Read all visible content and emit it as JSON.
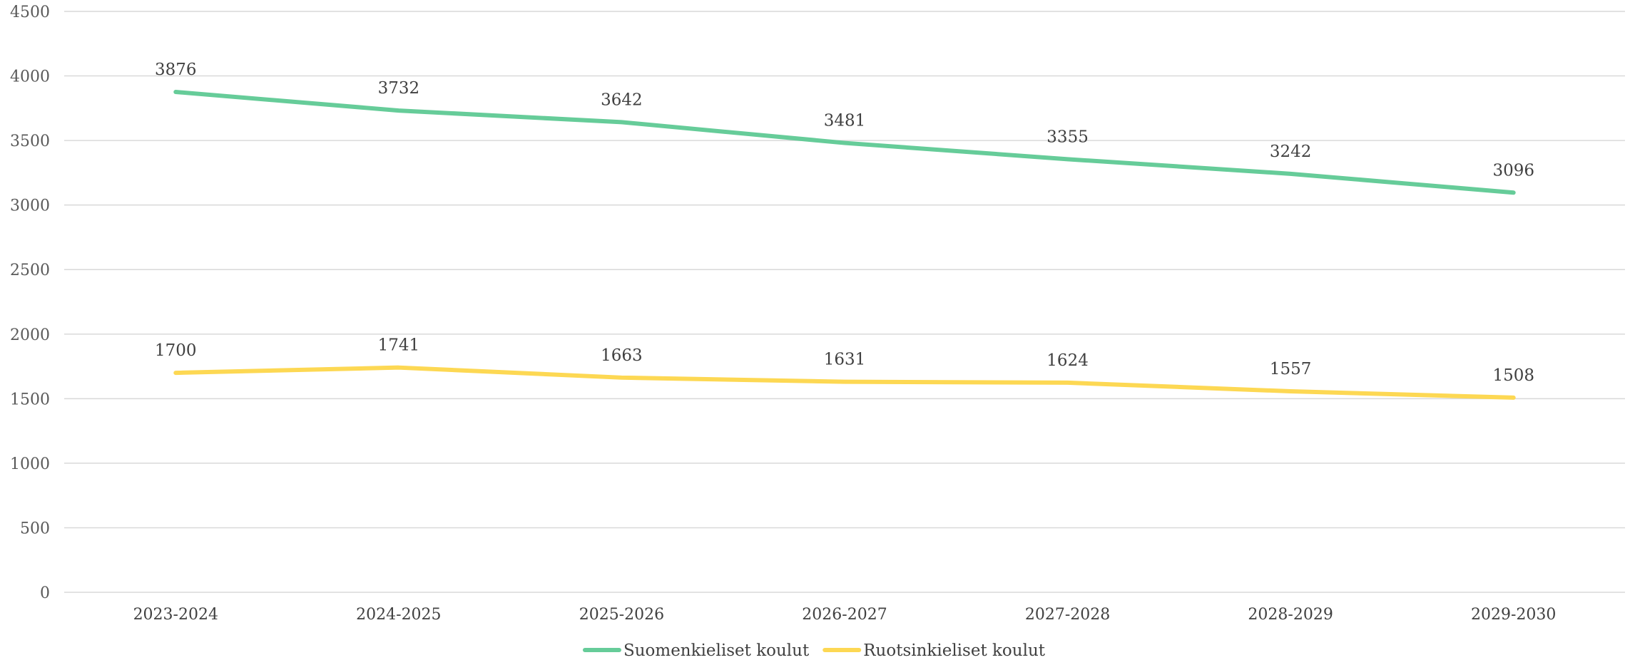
{
  "chart_data": {
    "type": "line",
    "title": "",
    "xlabel": "",
    "ylabel": "",
    "ylim": [
      0,
      4500
    ],
    "yticks": [
      0,
      500,
      1000,
      1500,
      2000,
      2500,
      3000,
      3500,
      4000,
      4500
    ],
    "grid": true,
    "legend_position": "bottom",
    "categories": [
      "2023-2024",
      "2024-2025",
      "2025-2026",
      "2026-2027",
      "2027-2028",
      "2028-2029",
      "2029-2030"
    ],
    "series": [
      {
        "name": "Suomenkieliset koulut",
        "color": "#66cc99",
        "values": [
          3876,
          3732,
          3642,
          3481,
          3355,
          3242,
          3096
        ]
      },
      {
        "name": "Ruotsinkieliset koulut",
        "color": "#fdd853",
        "values": [
          1700,
          1741,
          1663,
          1631,
          1624,
          1557,
          1508
        ]
      }
    ]
  }
}
